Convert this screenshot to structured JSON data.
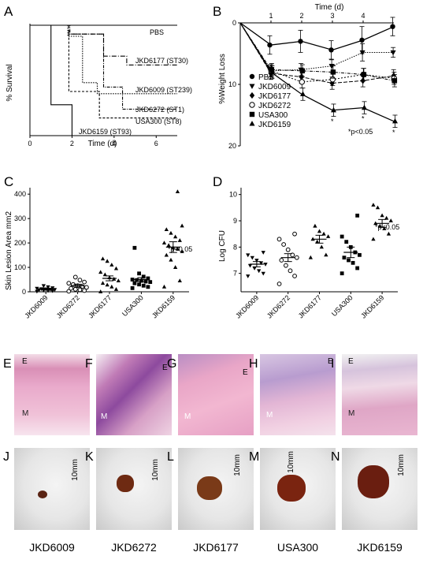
{
  "panels": {
    "A": {
      "letter": "A",
      "ylabel": "% Survival",
      "xlabel": "Time (d)",
      "xticks": [
        "0",
        "2",
        "4",
        "6"
      ],
      "labels": [
        "PBS",
        "JKD6177 (ST30)",
        "JKD6009 (ST239)",
        "JKD6272 (ST1)",
        "USA300 (ST8)",
        "JKD6159 (ST93)"
      ]
    },
    "B": {
      "letter": "B",
      "title": "Time (d)",
      "ylabel": "%Weight Loss",
      "xticks": [
        "1",
        "2",
        "3",
        "4"
      ],
      "yticks": [
        "0",
        "10",
        "20"
      ],
      "legend": [
        "PBS",
        "JKD6009",
        "JKD6177",
        "JKD6272",
        "USA300",
        "JKD6159"
      ],
      "pvalue": "*p<0.05",
      "star": "*"
    },
    "C": {
      "letter": "C",
      "ylabel": "Skin Lesion Area mm2",
      "yticks": [
        "0",
        "100",
        "200",
        "300",
        "400"
      ],
      "categories": [
        "JKD6009",
        "JKD6272",
        "JKD6177",
        "USA300",
        "JKD6159"
      ],
      "pvalue": "*p<0.05"
    },
    "D": {
      "letter": "D",
      "ylabel": "Log CFU",
      "yticks": [
        "7",
        "8",
        "9",
        "10"
      ],
      "categories": [
        "JKD6009",
        "JKD6272",
        "JKD6177",
        "USA300",
        "JKD6159"
      ],
      "pvalue": "*p<0.05"
    }
  },
  "chart_data": [
    {
      "type": "line",
      "panel": "A",
      "xlabel": "Time (d)",
      "ylabel": "% Survival",
      "xlim": [
        0,
        7
      ],
      "ylim": [
        0,
        100
      ],
      "series": [
        {
          "name": "PBS",
          "x": [
            0,
            7
          ],
          "y": [
            100,
            100
          ]
        },
        {
          "name": "JKD6177 (ST30)",
          "x": [
            0,
            1.85,
            1.85,
            3.5,
            3.5,
            4.6,
            4.6,
            7
          ],
          "y": [
            100,
            100,
            92,
            92,
            72,
            72,
            64,
            64
          ]
        },
        {
          "name": "JKD6009 (ST239)",
          "x": [
            0,
            1.8,
            1.8,
            2.5,
            2.5,
            3.2,
            3.2,
            7
          ],
          "y": [
            100,
            100,
            90,
            90,
            48,
            48,
            38,
            38
          ]
        },
        {
          "name": "JKD6272 (ST1)",
          "x": [
            0,
            1.9,
            1.9,
            3.5,
            3.5,
            4.4,
            4.4,
            7
          ],
          "y": [
            100,
            100,
            92,
            92,
            44,
            44,
            24,
            24
          ]
        },
        {
          "name": "USA300 (ST8)",
          "x": [
            0,
            1.85,
            1.85,
            3.3,
            3.3,
            7
          ],
          "y": [
            100,
            100,
            40,
            40,
            16,
            16
          ]
        },
        {
          "name": "JKD6159 (ST93)",
          "x": [
            0,
            1,
            1,
            2,
            2,
            7
          ],
          "y": [
            100,
            100,
            28,
            28,
            0,
            0
          ]
        }
      ]
    },
    {
      "type": "line",
      "panel": "B",
      "title": "Time (d)",
      "ylabel": "%Weight Loss",
      "xlim": [
        0,
        5
      ],
      "ylim": [
        0,
        20
      ],
      "x": [
        0,
        1,
        2,
        3,
        4,
        5
      ],
      "series": [
        {
          "name": "PBS",
          "marker": "circle-filled",
          "y": [
            0,
            3.6,
            3.0,
            4.4,
            2.8,
            0.6
          ],
          "err": [
            0,
            1.5,
            1.8,
            1.5,
            2.2,
            1.5
          ]
        },
        {
          "name": "JKD6009",
          "marker": "triangle-down",
          "y": [
            0,
            7.8,
            7.6,
            7.0,
            4.8,
            4.8
          ],
          "err": [
            0,
            1.0,
            1.0,
            1.0,
            1.4,
            0.8
          ]
        },
        {
          "name": "JKD6177",
          "marker": "diamond",
          "y": [
            0,
            8.2,
            8.8,
            9.8,
            9.4,
            8.6
          ],
          "err": [
            0,
            1.0,
            1.0,
            1.0,
            1.0,
            1.0
          ]
        },
        {
          "name": "JKD6272",
          "marker": "circle-open",
          "y": [
            0,
            7.8,
            9.6,
            9.2,
            8.4,
            9.0
          ],
          "err": [
            0,
            1.0,
            1.0,
            1.0,
            1.0,
            1.0
          ]
        },
        {
          "name": "USA300",
          "marker": "square",
          "y": [
            0,
            7.6,
            7.8,
            8.0,
            8.4,
            9.4
          ],
          "err": [
            0,
            1.0,
            1.0,
            1.0,
            1.0,
            1.0
          ]
        },
        {
          "name": "JKD6159",
          "marker": "triangle-up",
          "y": [
            0,
            8.0,
            11.6,
            14.2,
            13.8,
            16.0
          ],
          "err": [
            0,
            1.0,
            1.0,
            1.0,
            1.0,
            1.0
          ]
        }
      ]
    },
    {
      "type": "scatter",
      "panel": "C",
      "ylabel": "Skin Lesion Area mm2",
      "ylim": [
        0,
        420
      ],
      "categories": [
        "JKD6009",
        "JKD6272",
        "JKD6177",
        "USA300",
        "JKD6159"
      ],
      "markers": [
        "triangle-down",
        "circle-open",
        "triangle-up",
        "square",
        "triangle-up"
      ],
      "means": [
        12,
        25,
        55,
        50,
        183
      ],
      "sem": [
        3,
        6,
        10,
        8,
        22
      ],
      "points": [
        [
          2,
          4,
          5,
          6,
          8,
          9,
          10,
          11,
          12,
          14,
          16,
          20,
          25
        ],
        [
          2,
          5,
          8,
          10,
          14,
          18,
          22,
          25,
          30,
          35,
          40,
          48,
          60
        ],
        [
          0,
          10,
          20,
          28,
          35,
          45,
          52,
          58,
          70,
          80,
          95,
          110,
          125,
          135
        ],
        [
          15,
          20,
          25,
          30,
          35,
          40,
          42,
          45,
          48,
          50,
          55,
          62,
          75,
          180
        ],
        [
          20,
          45,
          100,
          130,
          150,
          165,
          175,
          180,
          190,
          200,
          210,
          225,
          240,
          255,
          270,
          410
        ]
      ]
    },
    {
      "type": "scatter",
      "panel": "D",
      "ylabel": "Log CFU",
      "ylim": [
        6.3,
        10.2
      ],
      "categories": [
        "JKD6009",
        "JKD6272",
        "JKD6177",
        "USA300",
        "JKD6159"
      ],
      "markers": [
        "triangle-down",
        "circle-open",
        "triangle-up",
        "square",
        "triangle-up"
      ],
      "means": [
        7.35,
        7.6,
        8.3,
        7.8,
        8.9
      ],
      "sem": [
        0.1,
        0.15,
        0.15,
        0.2,
        0.15
      ],
      "points": [
        [
          6.9,
          7.0,
          7.1,
          7.2,
          7.3,
          7.35,
          7.4,
          7.5,
          7.6,
          7.7,
          7.8
        ],
        [
          6.6,
          6.9,
          7.1,
          7.3,
          7.5,
          7.6,
          7.7,
          7.9,
          8.1,
          8.3,
          8.5
        ],
        [
          7.6,
          7.7,
          8.0,
          8.2,
          8.3,
          8.4,
          8.5,
          8.6,
          8.8
        ],
        [
          7.0,
          7.2,
          7.4,
          7.5,
          7.6,
          7.7,
          7.8,
          8.0,
          8.2,
          8.4,
          9.2
        ],
        [
          8.3,
          8.5,
          8.7,
          8.8,
          8.9,
          9.0,
          9.1,
          9.2,
          9.5,
          9.6
        ]
      ]
    }
  ],
  "photos": {
    "tissue": [
      {
        "letter": "E",
        "top_label": "E",
        "bottom_label": "M"
      },
      {
        "letter": "F",
        "top_label": "E",
        "bottom_label": "M"
      },
      {
        "letter": "G",
        "top_label": "E",
        "bottom_label": "M"
      },
      {
        "letter": "H",
        "top_label": "E",
        "bottom_label": "M"
      },
      {
        "letter": "I",
        "top_label": "E",
        "bottom_label": "M"
      }
    ],
    "mice": [
      {
        "letter": "J",
        "scale": "10mm"
      },
      {
        "letter": "K",
        "scale": "10mm"
      },
      {
        "letter": "L",
        "scale": "10mm"
      },
      {
        "letter": "M",
        "scale": "10mm"
      },
      {
        "letter": "N",
        "scale": "10mm"
      }
    ],
    "strains": [
      "JKD6009",
      "JKD6272",
      "JKD6177",
      "USA300",
      "JKD6159"
    ]
  },
  "colors": {
    "tissue_pink": "#e6a6c8",
    "tissue_purple": "#9a5aa8",
    "mouse_fur": "#ececec",
    "lesion": "#7a2a18"
  }
}
